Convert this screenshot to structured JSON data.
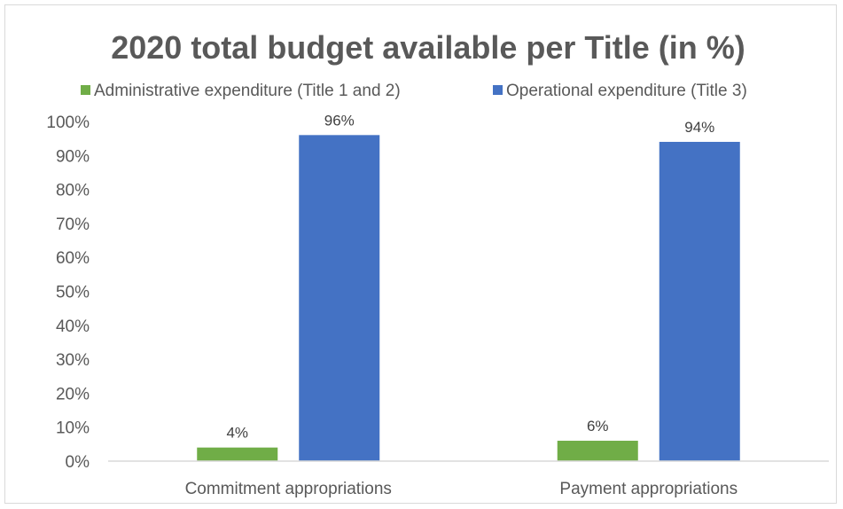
{
  "chart_data": {
    "type": "bar",
    "title": "2020 total budget available per Title (in %)",
    "xlabel": "",
    "ylabel": "",
    "categories": [
      "Commitment appropriations",
      "Payment appropriations"
    ],
    "series": [
      {
        "name": "Administrative expenditure (Title 1 and 2)",
        "values": [
          4,
          6
        ],
        "labels": [
          "4%",
          "6%"
        ],
        "color": "#70ad47"
      },
      {
        "name": "Operational expenditure (Title 3)",
        "values": [
          96,
          94
        ],
        "labels": [
          "96%",
          "94%"
        ],
        "color": "#4472c4"
      }
    ],
    "ylim": [
      0,
      100
    ],
    "yticks": [
      0,
      10,
      20,
      30,
      40,
      50,
      60,
      70,
      80,
      90,
      100
    ],
    "ytick_labels": [
      "0%",
      "10%",
      "20%",
      "30%",
      "40%",
      "50%",
      "60%",
      "70%",
      "80%",
      "90%",
      "100%"
    ],
    "legend": "top",
    "grid": false,
    "axis_color": "#d9d9d9",
    "text_color": "#595959"
  }
}
